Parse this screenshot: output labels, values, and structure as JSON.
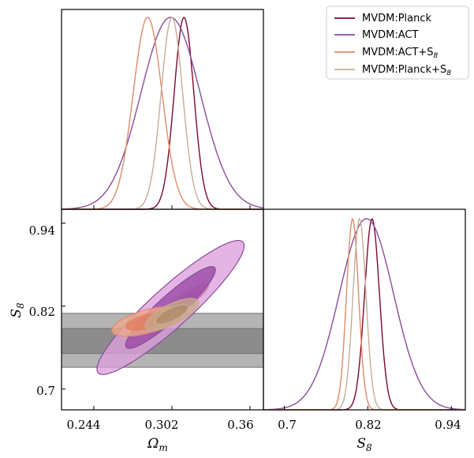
{
  "chart_data": {
    "type": "triangle-corner",
    "parameters": {
      "omega_m": {
        "label": "Ω",
        "label_sub": "m",
        "range": [
          0.22,
          0.37
        ],
        "ticks": [
          "0.244",
          "0.302",
          "0.36"
        ]
      },
      "s8": {
        "label": "S",
        "label_sub": "8",
        "range": [
          0.67,
          0.96
        ],
        "ticks": [
          "0.7",
          "0.82",
          "0.94"
        ]
      }
    },
    "legend": {
      "position": "top-right",
      "entries": [
        {
          "key": "planck",
          "text": "MVDM:Planck",
          "sub": ""
        },
        {
          "key": "act",
          "text": "MVDM:ACT",
          "sub": ""
        },
        {
          "key": "act_s8",
          "text": "MVDM:ACT+S",
          "sub": "8"
        },
        {
          "key": "planck_s8",
          "text": "MVDM:Planck+S",
          "sub": "8"
        }
      ]
    },
    "series": [
      {
        "key": "planck",
        "name": "MVDM:Planck",
        "color": "#7a0a2c",
        "fill_outer": "#c02a64",
        "fill_inner": "#8e1246",
        "omega_m": {
          "mean": 0.311,
          "sigma": 0.0073
        },
        "s8": {
          "mean": 0.826,
          "sigma": 0.0107
        },
        "correlation": 0.9
      },
      {
        "key": "act",
        "name": "MVDM:ACT",
        "color": "#8a4c9a",
        "fill_outer": "#dc9fdc",
        "fill_inner": "#9b4aa6",
        "omega_m": {
          "mean": 0.301,
          "sigma": 0.022
        },
        "s8": {
          "mean": 0.818,
          "sigma": 0.039
        },
        "correlation": 0.92
      },
      {
        "key": "act_s8",
        "name": "MVDM:ACT+S8",
        "color": "#e08a68",
        "fill_outer": "#f0a98c",
        "fill_inner": "#df7e60",
        "omega_m": {
          "mean": 0.284,
          "sigma": 0.0107
        },
        "s8": {
          "mean": 0.798,
          "sigma": 0.0087
        },
        "correlation": 0.6
      },
      {
        "key": "planck_s8",
        "name": "MVDM:Planck+S8",
        "color": "#c4ad98",
        "fill_outer": "#c8a888",
        "fill_inner": "#b08a68",
        "omega_m": {
          "mean": 0.302,
          "sigma": 0.008
        },
        "s8": {
          "mean": 0.808,
          "sigma": 0.0093
        },
        "correlation": 0.72
      }
    ],
    "s8_prior_bands": [
      {
        "label": "2 sigma",
        "range": [
          0.7315,
          0.8095
        ],
        "color": "#b4b4b4"
      },
      {
        "label": "1 sigma",
        "range": [
          0.7515,
          0.7875
        ],
        "color": "#8c8c8c"
      }
    ]
  }
}
